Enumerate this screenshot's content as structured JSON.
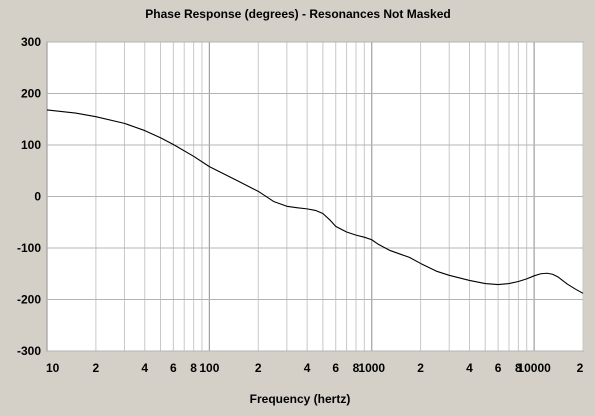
{
  "chart_data": {
    "type": "line",
    "title": "Phase Response (degrees) - Resonances Not Masked",
    "xlabel": "Frequency (hertz)",
    "ylabel": "",
    "x_scale": "log",
    "xlim": [
      10,
      20000
    ],
    "ylim": [
      -300,
      300
    ],
    "grid": true,
    "y_ticks": [
      "300",
      "200",
      "100",
      "0",
      "-100",
      "-200",
      "-300"
    ],
    "x_ticks": [
      {
        "value": 10,
        "label": "10"
      },
      {
        "value": 20,
        "label": "2"
      },
      {
        "value": 40,
        "label": "4"
      },
      {
        "value": 60,
        "label": "6"
      },
      {
        "value": 80,
        "label": "8"
      },
      {
        "value": 100,
        "label": "100"
      },
      {
        "value": 200,
        "label": "2"
      },
      {
        "value": 400,
        "label": "4"
      },
      {
        "value": 600,
        "label": "6"
      },
      {
        "value": 800,
        "label": "8"
      },
      {
        "value": 1000,
        "label": "1000"
      },
      {
        "value": 2000,
        "label": "2"
      },
      {
        "value": 4000,
        "label": "4"
      },
      {
        "value": 6000,
        "label": "6"
      },
      {
        "value": 8000,
        "label": "8"
      },
      {
        "value": 10000,
        "label": "10000"
      },
      {
        "value": 20000,
        "label": "2"
      }
    ],
    "series": [
      {
        "x": [
          10,
          15,
          20,
          30,
          40,
          50,
          60,
          80,
          100,
          150,
          200,
          250,
          300,
          350,
          400,
          450,
          500,
          550,
          600,
          700,
          800,
          900,
          1000,
          1100,
          1300,
          1500,
          1700,
          2000,
          2500,
          3000,
          4000,
          5000,
          6000,
          7000,
          8000,
          9000,
          10000,
          11000,
          12000,
          13000,
          14000,
          16000,
          18000,
          20000
        ],
        "y": [
          168,
          162,
          155,
          142,
          128,
          114,
          101,
          78,
          58,
          30,
          10,
          -10,
          -19,
          -22,
          -24,
          -27,
          -33,
          -45,
          -58,
          -69,
          -75,
          -79,
          -84,
          -93,
          -105,
          -112,
          -118,
          -130,
          -145,
          -153,
          -163,
          -169,
          -171,
          -169,
          -165,
          -160,
          -154,
          -150,
          -149,
          -151,
          -156,
          -170,
          -180,
          -188
        ]
      }
    ]
  }
}
